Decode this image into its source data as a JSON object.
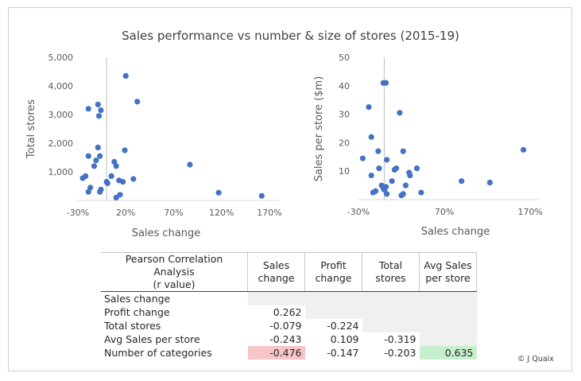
{
  "title": "Sales performance vs number & size of stores (2015-19)",
  "credit": "© J Quaix",
  "chart_data": [
    {
      "type": "scatter",
      "xlabel": "Sales change",
      "ylabel": "Total stores",
      "xlim": [
        -0.3,
        1.8
      ],
      "ylim": [
        0,
        5000
      ],
      "x_ticks": [
        "-30%",
        "20%",
        "70%",
        "120%",
        "170%"
      ],
      "y_ticks": [
        "",
        "1,000",
        "2,000",
        "3,000",
        "4,000",
        "5,000"
      ],
      "marker_color": "#4472c4",
      "points": [
        [
          -0.22,
          850
        ],
        [
          -0.25,
          780
        ],
        [
          -0.19,
          300
        ],
        [
          -0.17,
          450
        ],
        [
          -0.19,
          1550
        ],
        [
          -0.19,
          3200
        ],
        [
          -0.13,
          1200
        ],
        [
          -0.11,
          1400
        ],
        [
          -0.09,
          3350
        ],
        [
          -0.09,
          1850
        ],
        [
          -0.08,
          2950
        ],
        [
          -0.07,
          1550
        ],
        [
          -0.06,
          3150
        ],
        [
          -0.07,
          300
        ],
        [
          -0.06,
          380
        ],
        [
          0.0,
          650
        ],
        [
          0.01,
          600
        ],
        [
          0.05,
          850
        ],
        [
          0.08,
          1350
        ],
        [
          0.1,
          1200
        ],
        [
          0.1,
          100
        ],
        [
          0.13,
          700
        ],
        [
          0.14,
          200
        ],
        [
          0.17,
          650
        ],
        [
          0.19,
          1750
        ],
        [
          0.2,
          4350
        ],
        [
          0.28,
          750
        ],
        [
          0.32,
          3450
        ],
        [
          0.87,
          1250
        ],
        [
          1.17,
          270
        ],
        [
          1.62,
          160
        ]
      ]
    },
    {
      "type": "scatter",
      "xlabel": "Sales change",
      "ylabel": "Sales per store ($m)",
      "xlim": [
        -0.3,
        1.8
      ],
      "ylim": [
        0,
        50
      ],
      "x_ticks": [
        "-30%",
        "70%",
        "170%"
      ],
      "y_ticks": [
        "",
        "10",
        "20",
        "30",
        "40",
        "50"
      ],
      "marker_color": "#4472c4",
      "points": [
        [
          -0.25,
          14.5
        ],
        [
          -0.18,
          32.5
        ],
        [
          -0.15,
          22
        ],
        [
          -0.15,
          8.5
        ],
        [
          -0.13,
          2.5
        ],
        [
          -0.1,
          3
        ],
        [
          -0.07,
          17
        ],
        [
          -0.06,
          11
        ],
        [
          -0.03,
          5
        ],
        [
          -0.01,
          41
        ],
        [
          -0.01,
          4
        ],
        [
          0.0,
          3.5
        ],
        [
          0.02,
          41
        ],
        [
          0.02,
          4.5
        ],
        [
          0.03,
          2
        ],
        [
          0.03,
          14
        ],
        [
          0.09,
          6.5
        ],
        [
          0.12,
          10.5
        ],
        [
          0.14,
          11
        ],
        [
          0.18,
          30.5
        ],
        [
          0.2,
          1.5
        ],
        [
          0.22,
          17
        ],
        [
          0.22,
          2
        ],
        [
          0.25,
          5
        ],
        [
          0.29,
          9.5
        ],
        [
          0.3,
          8.5
        ],
        [
          0.38,
          11
        ],
        [
          0.43,
          2.5
        ],
        [
          0.9,
          6.5
        ],
        [
          1.23,
          6
        ],
        [
          1.62,
          17.5
        ]
      ]
    }
  ],
  "table": {
    "header_label": "Pearson Correlation Analysis\n(r value)",
    "columns": [
      "Sales change",
      "Profit change",
      "Total stores",
      "Avg Sales per store"
    ],
    "rows": [
      {
        "label": "Sales change",
        "values": [
          "",
          "",
          "",
          ""
        ]
      },
      {
        "label": "Profit change",
        "values": [
          "0.262",
          "",
          "",
          ""
        ]
      },
      {
        "label": "Total stores",
        "values": [
          "-0.079",
          "-0.224",
          "",
          ""
        ]
      },
      {
        "label": "Avg Sales per store",
        "values": [
          "-0.243",
          "0.109",
          "-0.319",
          ""
        ]
      },
      {
        "label": "Number of categories",
        "values": [
          "-0.476",
          "-0.147",
          "-0.203",
          "0.635"
        ]
      }
    ],
    "highlight_negative": "#f8c6c8",
    "highlight_positive": "#c6efcb"
  }
}
